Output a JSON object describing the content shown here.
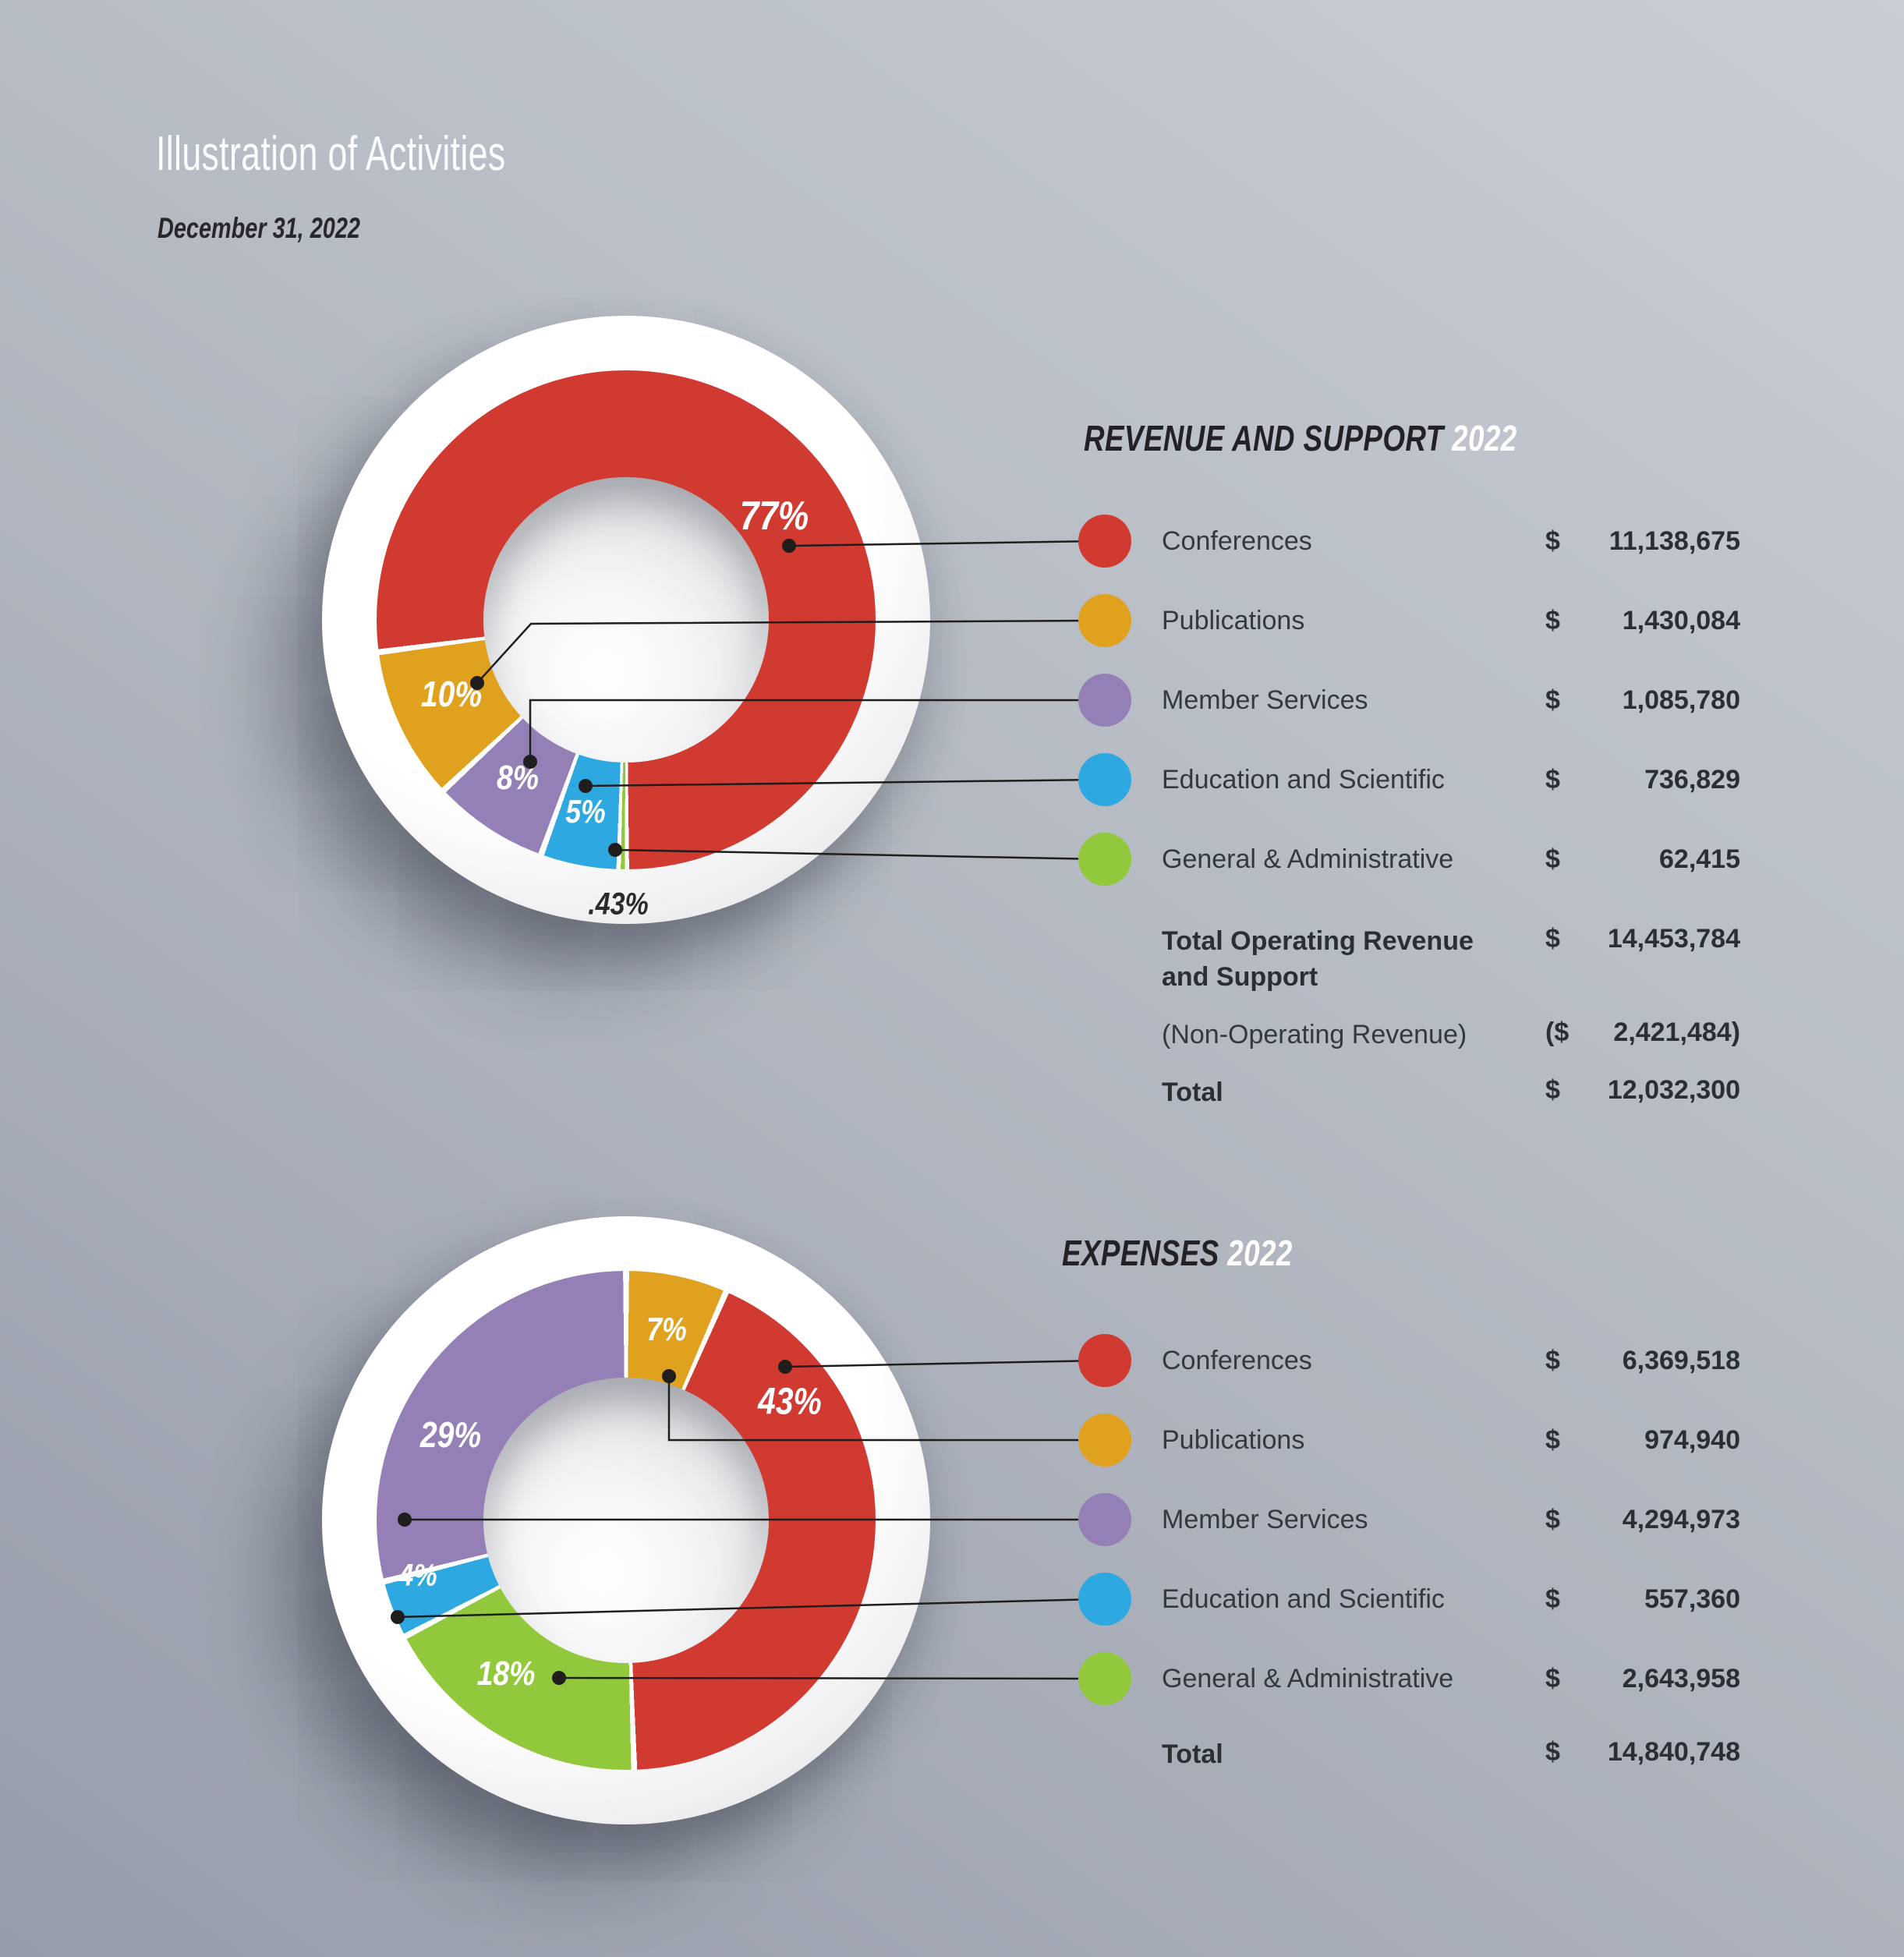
{
  "page": {
    "title": "Illustration of Activities",
    "date": "December 31, 2022"
  },
  "sections": [
    {
      "heading": "REVENUE AND SUPPORT",
      "year": "2022",
      "totals": [
        {
          "label": "Total Operating Revenue and Support",
          "prefix": "$",
          "amount": "14,453,784",
          "emphasis": true
        },
        {
          "label": "(Non-Operating Revenue)",
          "prefix": "($",
          "amount": "2,421,484)",
          "emphasis": false
        },
        {
          "label": "Total",
          "prefix": "$",
          "amount": "12,032,300",
          "emphasis": true
        }
      ]
    },
    {
      "heading": "EXPENSES",
      "year": "2022",
      "totals": [
        {
          "label": "Total",
          "prefix": "$",
          "amount": "14,840,748",
          "emphasis": true
        }
      ]
    }
  ],
  "chart_data": [
    {
      "type": "donut",
      "title": "REVENUE AND SUPPORT",
      "year": "2022",
      "categories": [
        "Conferences",
        "Publications",
        "Member Services",
        "Education and Scientific",
        "General & Administrative"
      ],
      "values": [
        11138675,
        1430084,
        1085780,
        736829,
        62415
      ],
      "currency": "$",
      "amounts": [
        "11,138,675",
        "1,430,084",
        "1,085,780",
        "736,829",
        "62,415"
      ],
      "percent_labels": [
        "77%",
        "10%",
        "8%",
        "5%",
        ".43%"
      ],
      "percents": [
        77.06,
        9.89,
        7.51,
        5.1,
        0.43
      ],
      "colors": [
        "#d03a31",
        "#dfa11e",
        "#9480b6",
        "#2ea8e0",
        "#92c83c"
      ],
      "legend_position": "right",
      "wheel": {
        "from_deg": 180,
        "sequence": [
          4,
          3,
          2,
          1,
          0
        ]
      },
      "label_layout": {
        "angles": [
          55,
          247,
          214.5,
          192,
          181.5
        ],
        "radii": [
          232,
          243,
          246,
          252,
          365
        ],
        "sizes": [
          52,
          46,
          44,
          42,
          40
        ],
        "colors": [
          "#ffffff",
          "#ffffff",
          "#ffffff",
          "#ffffff",
          "#2b2b2e"
        ]
      }
    },
    {
      "type": "donut",
      "title": "EXPENSES",
      "year": "2022",
      "categories": [
        "Conferences",
        "Publications",
        "Member Services",
        "Education and Scientific",
        "General & Administrative"
      ],
      "values": [
        6369518,
        974940,
        4294973,
        557360,
        2643958
      ],
      "currency": "$",
      "amounts": [
        "6,369,518",
        "974,940",
        "4,294,973",
        "557,360",
        "2,643,958"
      ],
      "percent_labels": [
        "43%",
        "7%",
        "29%",
        "4%",
        "18%"
      ],
      "percents": [
        42.92,
        6.57,
        28.94,
        3.76,
        17.82
      ],
      "colors": [
        "#d03a31",
        "#dfa11e",
        "#9480b6",
        "#2ea8e0",
        "#92c83c"
      ],
      "legend_position": "right",
      "wheel": {
        "from_deg": 0,
        "sequence": [
          1,
          0,
          4,
          3,
          2
        ]
      },
      "label_layout": {
        "angles": [
          54,
          12,
          296,
          255,
          218
        ],
        "radii": [
          259,
          250,
          250,
          276,
          250
        ],
        "sizes": [
          48,
          42,
          46,
          40,
          44
        ],
        "colors": [
          "#ffffff",
          "#ffffff",
          "#ffffff",
          "#ffffff",
          "#ffffff"
        ]
      }
    }
  ]
}
